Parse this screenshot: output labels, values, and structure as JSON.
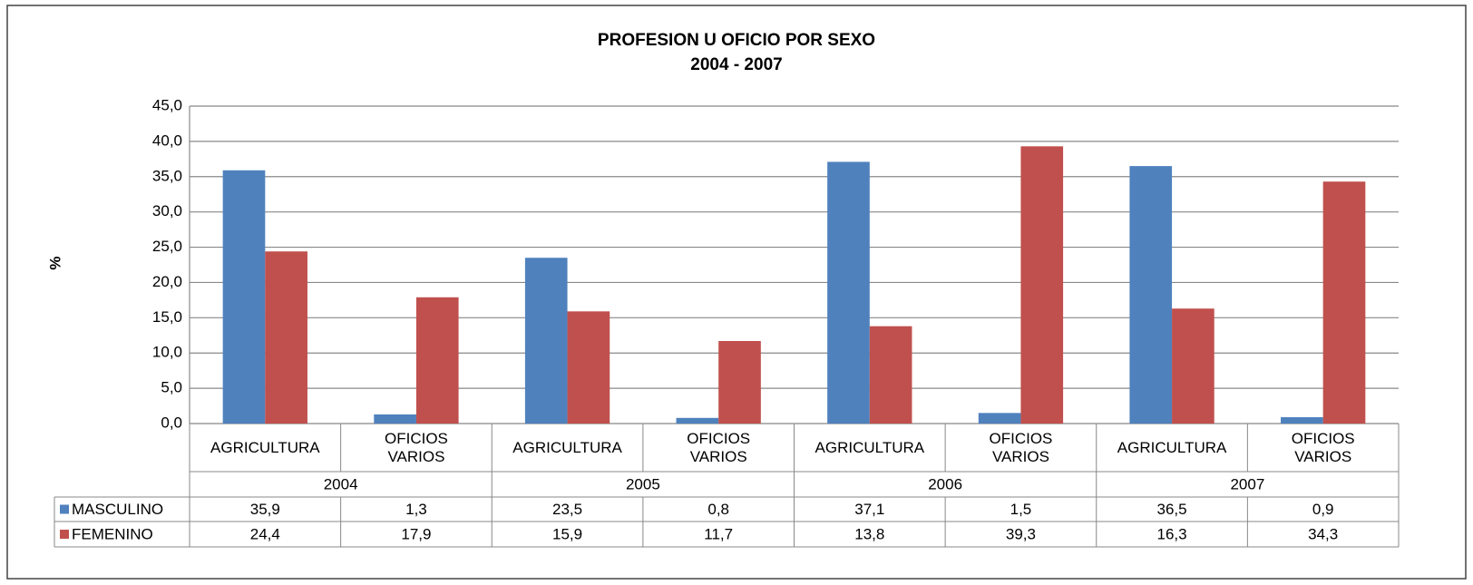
{
  "chart_data": {
    "type": "bar",
    "title": "PROFESION U OFICIO POR SEXO",
    "subtitle": "2004 - 2007",
    "ylabel": "%",
    "categories": [
      "AGRICULTURA",
      "OFICIOS VARIOS",
      "AGRICULTURA",
      "OFICIOS VARIOS",
      "AGRICULTURA",
      "OFICIOS VARIOS",
      "AGRICULTURA",
      "OFICIOS VARIOS"
    ],
    "groups": [
      "2004",
      "2005",
      "2006",
      "2007"
    ],
    "series": [
      {
        "name": "MASCULINO",
        "color": "#4f81bd",
        "values": [
          35.9,
          1.3,
          23.5,
          0.8,
          37.1,
          1.5,
          36.5,
          0.9
        ],
        "value_labels": [
          "35,9",
          "1,3",
          "23,5",
          "0,8",
          "37,1",
          "1,5",
          "36,5",
          "0,9"
        ]
      },
      {
        "name": "FEMENINO",
        "color": "#c0504d",
        "values": [
          24.4,
          17.9,
          15.9,
          11.7,
          13.8,
          39.3,
          16.3,
          34.3
        ],
        "value_labels": [
          "24,4",
          "17,9",
          "15,9",
          "11,7",
          "13,8",
          "39,3",
          "16,3",
          "34,3"
        ]
      }
    ],
    "ylim": [
      0,
      45
    ],
    "yticks": [
      {
        "value": 0,
        "label": "0,0"
      },
      {
        "value": 5,
        "label": "5,0"
      },
      {
        "value": 10,
        "label": "10,0"
      },
      {
        "value": 15,
        "label": "15,0"
      },
      {
        "value": 20,
        "label": "20,0"
      },
      {
        "value": 25,
        "label": "25,0"
      },
      {
        "value": 30,
        "label": "30,0"
      },
      {
        "value": 35,
        "label": "35,0"
      },
      {
        "value": 40,
        "label": "40,0"
      },
      {
        "value": 45,
        "label": "45,0"
      }
    ],
    "grid": true
  }
}
